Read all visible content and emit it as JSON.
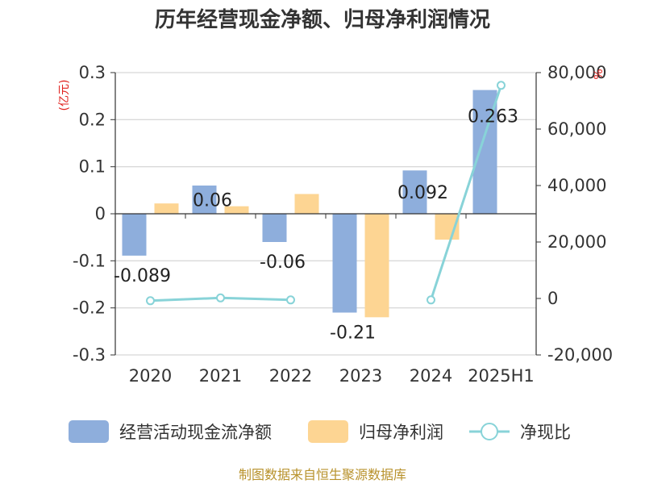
{
  "title": "历年经营现金净额、归母净利润情况",
  "source": "制图数据来自恒生聚源数据库",
  "left_unit": "(亿元)",
  "right_unit": "%",
  "colors": {
    "operating_cash": "#8eaedc",
    "net_profit": "#fdd593",
    "ratio_line": "#88d3d8",
    "grid": "#cccccc",
    "axis": "#333333"
  },
  "chart_data": {
    "type": "bar",
    "title": "历年经营现金净额、归母净利润情况",
    "categories": [
      "2020",
      "2021",
      "2022",
      "2023",
      "2024",
      "2025H1"
    ],
    "series": [
      {
        "name": "经营活动现金流净额",
        "type": "bar",
        "values": [
          -0.089,
          0.06,
          -0.06,
          -0.21,
          0.092,
          0.263
        ],
        "labels": [
          "-0.089",
          "0.06",
          "-0.06",
          "-0.21",
          "0.092",
          "0.263"
        ]
      },
      {
        "name": "归母净利润",
        "type": "bar",
        "values": [
          0.022,
          0.016,
          0.042,
          -0.22,
          -0.055,
          null
        ]
      },
      {
        "name": "净现比",
        "type": "line",
        "axis": "right",
        "values": [
          -800,
          200,
          -500,
          null,
          -500,
          75500
        ]
      }
    ],
    "y_left": {
      "unit": "(亿元)",
      "lim": [
        -0.3,
        0.3
      ],
      "ticks": [
        "-0.3",
        "-0.2",
        "-0.1",
        "0",
        "0.1",
        "0.2",
        "0.3"
      ]
    },
    "y_right": {
      "unit": "%",
      "lim": [
        -20000,
        80000
      ],
      "ticks": [
        "-20,000",
        "0",
        "20,000",
        "40,000",
        "60,000",
        "80,000"
      ]
    },
    "grid": true,
    "legend_position": "bottom"
  }
}
